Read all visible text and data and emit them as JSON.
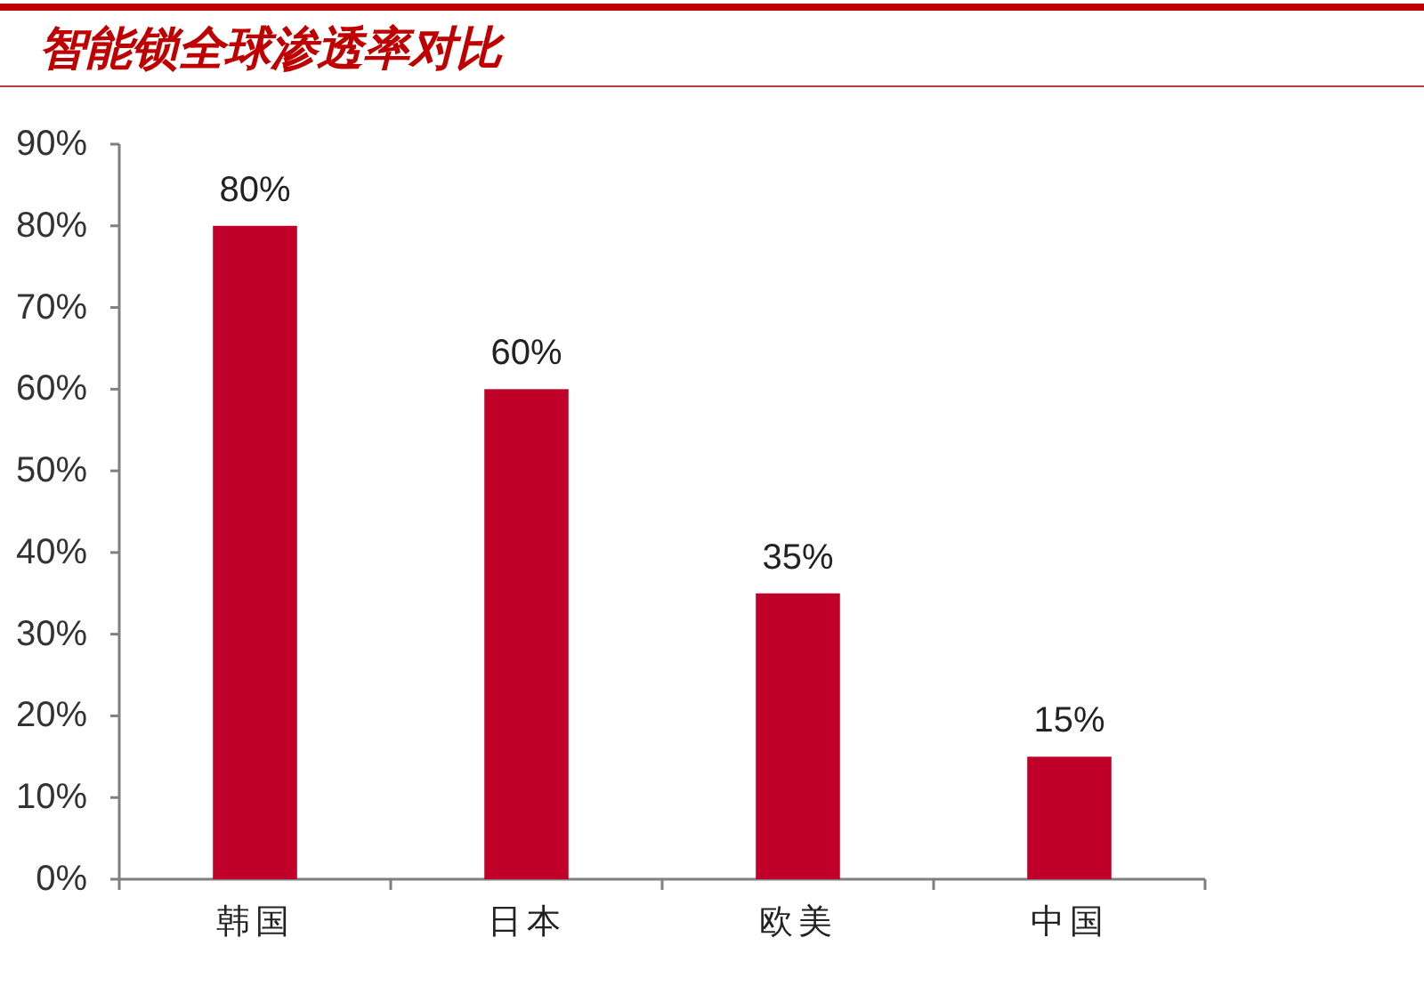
{
  "chart_data": {
    "type": "bar",
    "title": "智能锁全球渗透率对比",
    "categories": [
      "韩国",
      "日本",
      "欧美",
      "中国"
    ],
    "values": [
      80,
      60,
      35,
      15
    ],
    "color": "#c00028",
    "value_labels": [
      "80%",
      "60%",
      "35%",
      "15%"
    ],
    "ylim": [
      0,
      90
    ],
    "yticks": [
      {
        "value": 0,
        "label": "0%"
      },
      {
        "value": 10,
        "label": "10%"
      },
      {
        "value": 20,
        "label": "20%"
      },
      {
        "value": 30,
        "label": "30%"
      },
      {
        "value": 40,
        "label": "40%"
      },
      {
        "value": 50,
        "label": "50%"
      },
      {
        "value": 60,
        "label": "60%"
      },
      {
        "value": 70,
        "label": "70%"
      },
      {
        "value": 80,
        "label": "80%"
      },
      {
        "value": 90,
        "label": "90%"
      }
    ]
  }
}
